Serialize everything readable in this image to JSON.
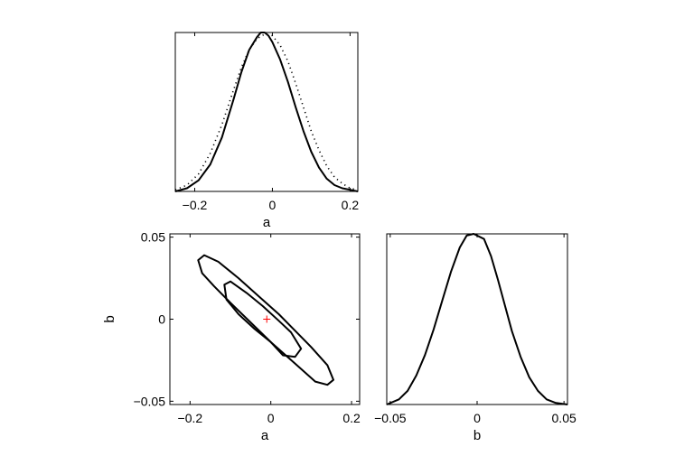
{
  "chart_data": [
    {
      "panel": "marginal-a",
      "type": "line",
      "xlabel": "a",
      "ylabel": "",
      "xlim": [
        -0.25,
        0.22
      ],
      "ylim": [
        0,
        1.0
      ],
      "xticks": [
        -0.2,
        0,
        0.2
      ],
      "xtick_labels": [
        "−0.2",
        "0",
        "0.2"
      ],
      "yticks": [],
      "series": [
        {
          "style": "solid",
          "x": [
            -0.25,
            -0.22,
            -0.19,
            -0.16,
            -0.13,
            -0.1,
            -0.08,
            -0.06,
            -0.04,
            -0.03,
            -0.02,
            -0.01,
            0.0,
            0.02,
            0.04,
            0.06,
            0.08,
            0.1,
            0.12,
            0.14,
            0.16,
            0.18,
            0.2,
            0.22
          ],
          "y": [
            0.0,
            0.02,
            0.07,
            0.17,
            0.34,
            0.58,
            0.75,
            0.89,
            0.97,
            1.0,
            1.0,
            0.98,
            0.94,
            0.83,
            0.69,
            0.53,
            0.38,
            0.25,
            0.15,
            0.08,
            0.04,
            0.02,
            0.01,
            0.0
          ]
        },
        {
          "style": "dotted",
          "x": [
            -0.25,
            -0.22,
            -0.19,
            -0.16,
            -0.13,
            -0.1,
            -0.08,
            -0.06,
            -0.04,
            -0.02,
            0.0,
            0.02,
            0.04,
            0.06,
            0.08,
            0.1,
            0.12,
            0.14,
            0.16,
            0.18,
            0.2,
            0.22
          ],
          "y": [
            0.01,
            0.04,
            0.11,
            0.24,
            0.42,
            0.64,
            0.78,
            0.89,
            0.96,
            0.99,
            0.98,
            0.92,
            0.82,
            0.68,
            0.53,
            0.38,
            0.26,
            0.16,
            0.09,
            0.05,
            0.02,
            0.01
          ]
        }
      ]
    },
    {
      "panel": "joint-a-b",
      "type": "scatter",
      "xlabel": "a",
      "ylabel": "b",
      "xlim": [
        -0.25,
        0.22
      ],
      "ylim": [
        -0.052,
        0.052
      ],
      "xticks": [
        -0.2,
        0,
        0.2
      ],
      "xtick_labels": [
        "−0.2",
        "0",
        "0.2"
      ],
      "yticks": [
        0.05,
        0,
        -0.05
      ],
      "ytick_labels": [
        "0.05",
        "0",
        "−0.05"
      ],
      "contours": [
        {
          "level": "outer",
          "points": [
            [
              -0.18,
              0.036
            ],
            [
              -0.165,
              0.039
            ],
            [
              -0.13,
              0.035
            ],
            [
              -0.08,
              0.025
            ],
            [
              -0.03,
              0.014
            ],
            [
              0.02,
              0.003
            ],
            [
              0.06,
              -0.007
            ],
            [
              0.1,
              -0.017
            ],
            [
              0.14,
              -0.028
            ],
            [
              0.155,
              -0.037
            ],
            [
              0.14,
              -0.04
            ],
            [
              0.11,
              -0.038
            ],
            [
              0.06,
              -0.027
            ],
            [
              0.0,
              -0.014
            ],
            [
              -0.05,
              -0.002
            ],
            [
              -0.1,
              0.01
            ],
            [
              -0.14,
              0.02
            ],
            [
              -0.17,
              0.028
            ],
            [
              -0.18,
              0.036
            ]
          ]
        },
        {
          "level": "inner",
          "points": [
            [
              -0.115,
              0.021
            ],
            [
              -0.1,
              0.023
            ],
            [
              -0.06,
              0.016
            ],
            [
              -0.02,
              0.008
            ],
            [
              0.02,
              -0.001
            ],
            [
              0.05,
              -0.008
            ],
            [
              0.075,
              -0.018
            ],
            [
              0.06,
              -0.023
            ],
            [
              0.03,
              -0.022
            ],
            [
              0.0,
              -0.014
            ],
            [
              -0.04,
              -0.006
            ],
            [
              -0.08,
              0.003
            ],
            [
              -0.11,
              0.012
            ],
            [
              -0.115,
              0.021
            ]
          ]
        }
      ],
      "marker": {
        "x": -0.01,
        "y": 0.0,
        "symbol": "+",
        "color": "#ff0000"
      }
    },
    {
      "panel": "marginal-b",
      "type": "line",
      "xlabel": "b",
      "ylabel": "",
      "xlim": [
        -0.052,
        0.052
      ],
      "ylim": [
        0,
        1.0
      ],
      "xticks": [
        -0.05,
        0,
        0.05
      ],
      "xtick_labels": [
        "−0.05",
        "0",
        "0.05"
      ],
      "yticks": [],
      "series": [
        {
          "style": "solid",
          "x": [
            -0.052,
            -0.045,
            -0.04,
            -0.035,
            -0.03,
            -0.025,
            -0.02,
            -0.015,
            -0.01,
            -0.006,
            -0.002,
            0.004,
            0.008,
            0.012,
            0.016,
            0.02,
            0.025,
            0.03,
            0.035,
            0.04,
            0.045,
            0.052
          ],
          "y": [
            0.0,
            0.03,
            0.08,
            0.17,
            0.29,
            0.44,
            0.61,
            0.78,
            0.92,
            0.99,
            1.0,
            0.97,
            0.87,
            0.73,
            0.58,
            0.43,
            0.28,
            0.16,
            0.08,
            0.03,
            0.01,
            0.0
          ]
        }
      ]
    }
  ]
}
